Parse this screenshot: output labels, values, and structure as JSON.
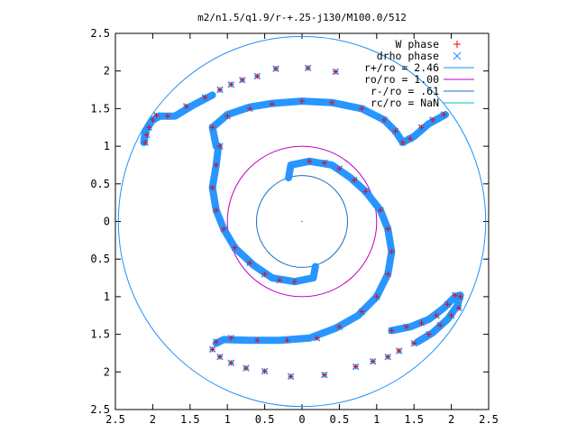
{
  "chart_data": {
    "type": "scatter",
    "title": "m2/n1.5/q1.9/r-+.25-j130/M100.0/512",
    "xlabel": "",
    "ylabel": "",
    "xlim": [
      -2.5,
      2.5
    ],
    "ylim": [
      -2.5,
      2.5
    ],
    "x_tick_labels": [
      "2.5",
      "2",
      "1.5",
      "1",
      "0.5",
      "0",
      "0.5",
      "1",
      "1.5",
      "2",
      "2.5"
    ],
    "y_tick_labels": [
      "2.5",
      "2",
      "1.5",
      "1",
      "0.5",
      "0",
      "0.5",
      "1",
      "1.5",
      "2",
      "2.5"
    ],
    "grid": false,
    "legend_position": "top-right",
    "colors": {
      "w_phase": "#ff0000",
      "drho_phase": "#1e90ff",
      "r_plus": "#1e90ff",
      "r_o": "#c000c0",
      "r_minus": "#1f6fbf",
      "r_c": "#00c0c0"
    },
    "series": [
      {
        "name": "W phase",
        "marker": "+",
        "points": [
          [
            -2.1,
            1.05
          ],
          [
            -2.08,
            1.15
          ],
          [
            -2.05,
            1.25
          ],
          [
            -2.0,
            1.35
          ],
          [
            -1.95,
            1.41
          ],
          [
            -1.8,
            1.4
          ],
          [
            -1.55,
            1.53
          ],
          [
            -1.3,
            1.65
          ],
          [
            -1.1,
            1.75
          ],
          [
            -0.95,
            1.82
          ],
          [
            -0.8,
            1.88
          ],
          [
            -0.6,
            1.93
          ],
          [
            -0.35,
            2.03
          ],
          [
            0.08,
            2.04
          ],
          [
            0.45,
            1.99
          ],
          [
            -1.2,
            1.25
          ],
          [
            -1.0,
            1.4
          ],
          [
            -0.7,
            1.5
          ],
          [
            -0.4,
            1.56
          ],
          [
            0.0,
            1.6
          ],
          [
            0.4,
            1.58
          ],
          [
            0.8,
            1.5
          ],
          [
            1.1,
            1.35
          ],
          [
            1.25,
            1.2
          ],
          [
            1.35,
            1.05
          ],
          [
            1.45,
            1.1
          ],
          [
            1.6,
            1.25
          ],
          [
            1.75,
            1.35
          ],
          [
            1.9,
            1.42
          ],
          [
            0.1,
            0.8
          ],
          [
            0.3,
            0.78
          ],
          [
            0.5,
            0.7
          ],
          [
            0.7,
            0.55
          ],
          [
            0.85,
            0.4
          ],
          [
            1.05,
            0.15
          ],
          [
            1.15,
            -0.1
          ],
          [
            1.2,
            -0.4
          ],
          [
            1.15,
            -0.7
          ],
          [
            1.0,
            -1.0
          ],
          [
            0.8,
            -1.2
          ],
          [
            0.5,
            -1.4
          ],
          [
            0.2,
            -1.55
          ],
          [
            -0.2,
            -1.58
          ],
          [
            -0.6,
            -1.58
          ],
          [
            -0.95,
            -1.55
          ],
          [
            -1.15,
            -1.6
          ],
          [
            -0.1,
            -0.8
          ],
          [
            -0.3,
            -0.78
          ],
          [
            -0.5,
            -0.7
          ],
          [
            -0.7,
            -0.55
          ],
          [
            -0.9,
            -0.35
          ],
          [
            -1.05,
            -0.1
          ],
          [
            -1.15,
            0.15
          ],
          [
            -1.2,
            0.45
          ],
          [
            -1.15,
            0.75
          ],
          [
            -1.1,
            1.0
          ],
          [
            -1.2,
            -1.7
          ],
          [
            -1.1,
            -1.8
          ],
          [
            -0.95,
            -1.88
          ],
          [
            -0.75,
            -1.95
          ],
          [
            -0.5,
            -1.99
          ],
          [
            -0.15,
            -2.06
          ],
          [
            0.3,
            -2.04
          ],
          [
            0.72,
            -1.93
          ],
          [
            0.95,
            -1.86
          ],
          [
            1.15,
            -1.8
          ],
          [
            1.3,
            -1.72
          ],
          [
            1.5,
            -1.62
          ],
          [
            1.7,
            -1.5
          ],
          [
            1.85,
            -1.38
          ],
          [
            2.0,
            -1.25
          ],
          [
            2.1,
            -1.15
          ],
          [
            2.12,
            -1.0
          ],
          [
            1.2,
            -1.45
          ],
          [
            1.4,
            -1.4
          ],
          [
            1.6,
            -1.35
          ],
          [
            1.8,
            -1.25
          ],
          [
            1.95,
            -1.1
          ],
          [
            2.05,
            -0.98
          ]
        ]
      },
      {
        "name": "drho phase",
        "marker": "x",
        "points": []
      }
    ],
    "circles": [
      {
        "name": "r+/ro = 2.46",
        "radius": 2.46
      },
      {
        "name": "ro/ro = 1.00",
        "radius": 1.0
      },
      {
        "name": "r-/ro = .61",
        "radius": 0.61
      },
      {
        "name": "rc/ro = NaN",
        "radius": null
      }
    ]
  }
}
